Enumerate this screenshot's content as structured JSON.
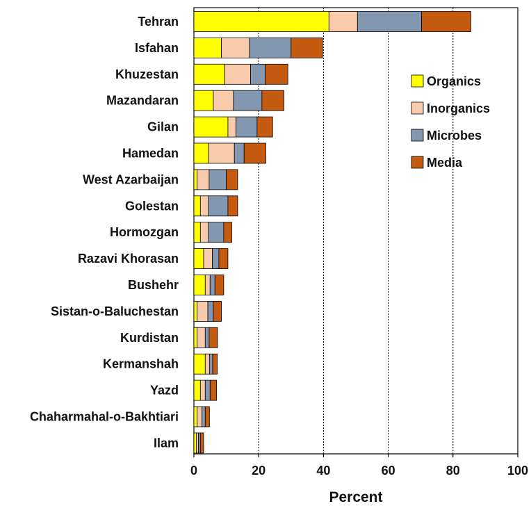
{
  "chart_data": {
    "type": "bar",
    "orientation": "horizontal",
    "stacked": true,
    "categories": [
      "Tehran",
      "Isfahan",
      "Khuzestan",
      "Mazandaran",
      "Gilan",
      "Hamedan",
      "West Azarbaijan",
      "Golestan",
      "Hormozgan",
      "Razavi Khorasan",
      "Bushehr",
      "Sistan-o-Baluchestan",
      "Kurdistan",
      "Kermanshah",
      "Yazd",
      "Chaharmahal-o-Bakhtiari",
      "Ilam"
    ],
    "series": [
      {
        "name": "Organics",
        "color": "#ffff00",
        "values": [
          41.7,
          8.5,
          9.5,
          6.0,
          10.5,
          4.5,
          1.0,
          2.0,
          2.0,
          3.0,
          3.5,
          1.0,
          1.0,
          3.5,
          2.0,
          1.0,
          0.8
        ]
      },
      {
        "name": "Inorganics",
        "color": "#f8cbad",
        "values": [
          8.8,
          8.7,
          8.0,
          6.2,
          2.5,
          8.0,
          3.7,
          2.5,
          2.5,
          2.7,
          1.5,
          3.3,
          2.5,
          1.3,
          1.5,
          1.5,
          0.6
        ]
      },
      {
        "name": "Microbes",
        "color": "#8497b0",
        "values": [
          19.8,
          12.8,
          4.5,
          8.8,
          6.5,
          3.0,
          5.3,
          6.0,
          4.7,
          2.0,
          1.5,
          1.7,
          1.2,
          1.0,
          1.5,
          1.0,
          0.6
        ]
      },
      {
        "name": "Media",
        "color": "#c55a11",
        "values": [
          15.2,
          9.7,
          7.0,
          6.8,
          4.8,
          6.7,
          3.5,
          3.0,
          2.5,
          2.8,
          2.7,
          2.5,
          2.6,
          1.4,
          2.0,
          1.3,
          1.0
        ]
      }
    ],
    "xlabel": "Percent",
    "ylabel": "",
    "xlim": [
      0,
      100
    ],
    "xticks": [
      0,
      20,
      40,
      60,
      80,
      100
    ],
    "grid": "vertical dotted at x ticks",
    "legend": "right, inside plot area"
  }
}
